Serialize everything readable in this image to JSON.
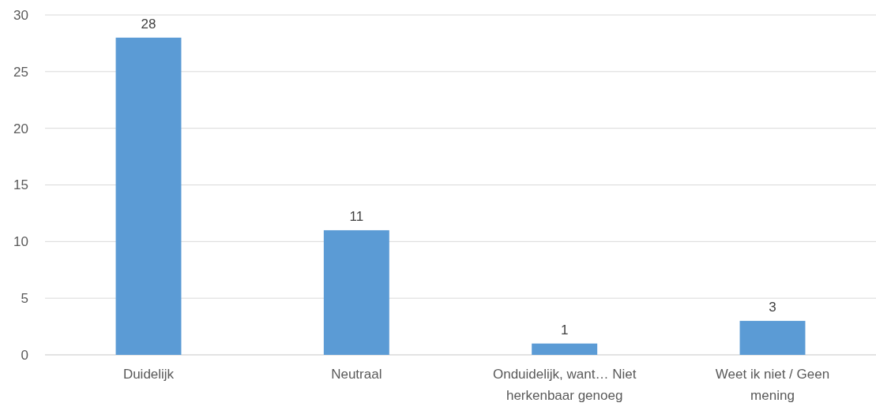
{
  "chart_data": {
    "type": "bar",
    "categories": [
      "Duidelijk",
      "Neutraal",
      "Onduidelijk, want… Niet herkenbaar genoeg",
      "Weet ik niet / Geen mening"
    ],
    "values": [
      28,
      11,
      1,
      3
    ],
    "color": "#5b9bd5",
    "ylim": [
      0,
      30
    ],
    "yticks": [
      0,
      5,
      10,
      15,
      20,
      25,
      30
    ],
    "grid": "y",
    "data_labels": true
  }
}
